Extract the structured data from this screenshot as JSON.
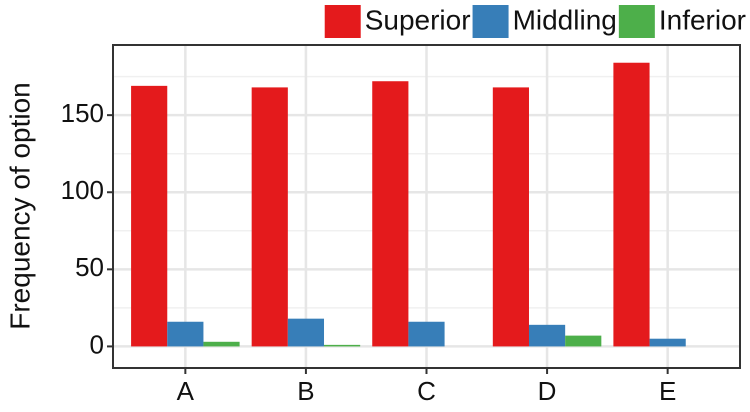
{
  "chart_data": {
    "type": "bar",
    "y_label": "Frequency of option",
    "categories": [
      "A",
      "B",
      "C",
      "D",
      "E"
    ],
    "series": [
      {
        "name": "Superior",
        "color": "#e41a1c",
        "values": [
          169,
          168,
          172,
          168,
          184
        ]
      },
      {
        "name": "Middling",
        "color": "#377eb8",
        "values": [
          16,
          18,
          16,
          14,
          5
        ]
      },
      {
        "name": "Inferior",
        "color": "#4daf4a",
        "values": [
          3,
          1,
          0,
          7,
          0
        ]
      }
    ],
    "ylim": [
      -14,
      195.5
    ],
    "yticks": [
      0,
      50,
      100,
      150
    ],
    "y_minor_ticks": [
      25,
      75,
      125,
      175
    ],
    "grid": true,
    "legend": "top"
  }
}
